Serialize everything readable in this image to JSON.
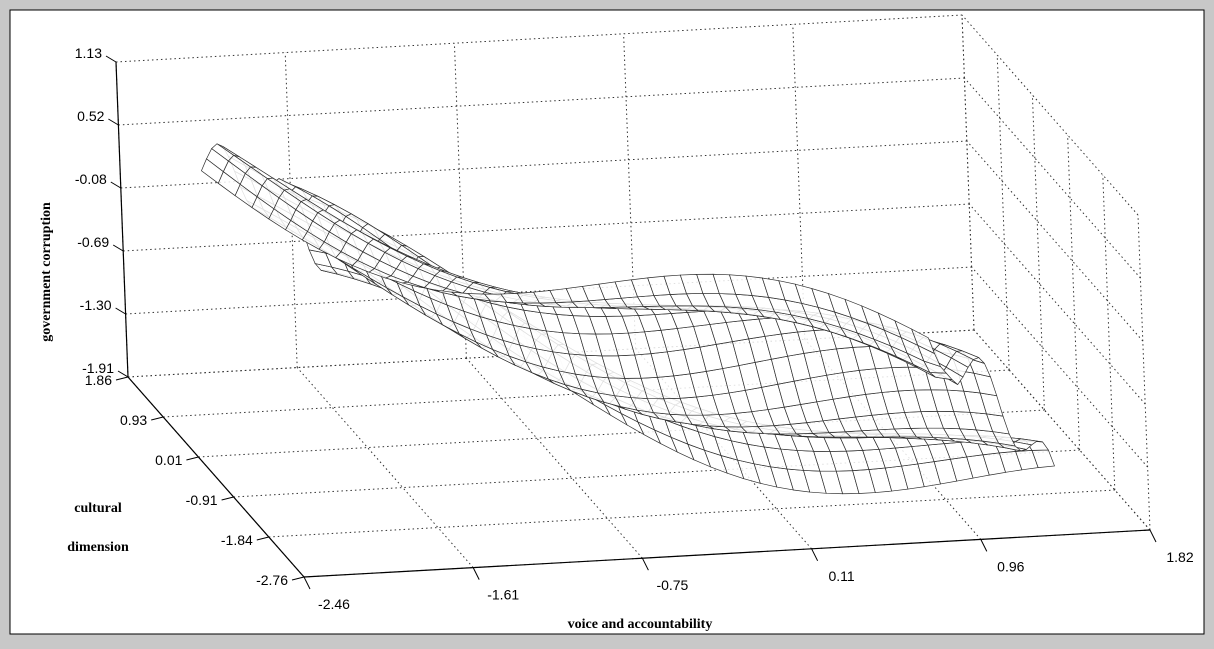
{
  "chart_data": {
    "type": "surface",
    "title": "",
    "xlabel": "voice and accountability",
    "ylabel": "cultural dimension",
    "ylabel_lines": [
      "cultural",
      "dimension"
    ],
    "zlabel": "government corruption",
    "x_ticks": [
      "-2.46",
      "-1.61",
      "-0.75",
      "0.11",
      "0.96",
      "1.82"
    ],
    "y_ticks": [
      "1.86",
      "0.93",
      "0.01",
      "-0.91",
      "-1.84",
      "-2.76"
    ],
    "z_ticks": [
      "1.13",
      "0.52",
      "-0.08",
      "-0.69",
      "-1.30",
      "-1.91"
    ],
    "xlim": [
      -2.46,
      1.82
    ],
    "ylim": [
      -2.76,
      1.86
    ],
    "zlim": [
      -1.91,
      1.13
    ],
    "grid": true,
    "colors": {
      "background": "#c8c8c8",
      "axes_face": "#ffffff",
      "mesh": "#303030"
    }
  }
}
